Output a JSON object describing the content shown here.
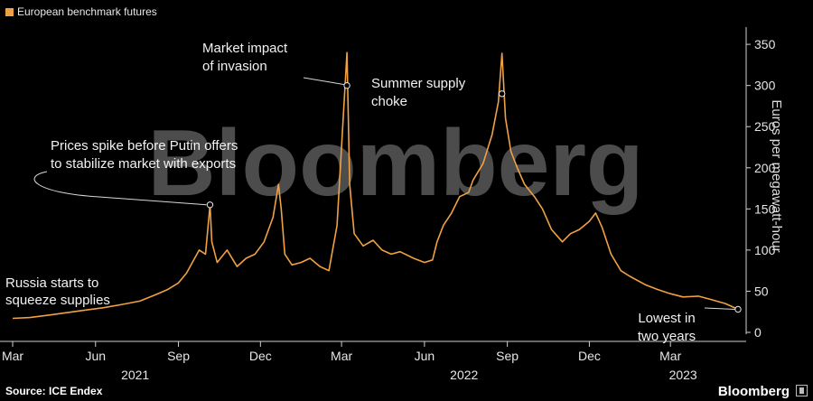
{
  "legend": {
    "label": "European benchmark futures",
    "color": "#f0a144"
  },
  "source": "Source: ICE Endex",
  "brand": "Bloomberg",
  "watermark": "Bloomberg",
  "chart_data": {
    "type": "line",
    "ylabel": "Euros per megawatt-hour",
    "ylim": [
      0,
      360
    ],
    "yticks": [
      0,
      50,
      100,
      150,
      200,
      250,
      300,
      350
    ],
    "xlim": [
      "2021-03-01",
      "2023-05-20"
    ],
    "xticks": [
      {
        "label": "Mar",
        "date": "2021-03-01"
      },
      {
        "label": "Jun",
        "date": "2021-06-01"
      },
      {
        "label": "Sep",
        "date": "2021-09-01"
      },
      {
        "label": "Dec",
        "date": "2021-12-01"
      },
      {
        "label": "Mar",
        "date": "2022-03-01"
      },
      {
        "label": "Jun",
        "date": "2022-06-01"
      },
      {
        "label": "Sep",
        "date": "2022-09-01"
      },
      {
        "label": "Dec",
        "date": "2022-12-01"
      },
      {
        "label": "Mar",
        "date": "2023-03-01"
      }
    ],
    "year_labels": [
      {
        "label": "2021",
        "date": "2021-07-15"
      },
      {
        "label": "2022",
        "date": "2022-07-15"
      },
      {
        "label": "2023",
        "date": "2023-03-15"
      }
    ],
    "grid": false,
    "series": [
      {
        "color": "#f0a144",
        "points": [
          [
            "2021-03-01",
            17
          ],
          [
            "2021-03-20",
            18
          ],
          [
            "2021-04-10",
            21
          ],
          [
            "2021-05-01",
            24
          ],
          [
            "2021-05-20",
            27
          ],
          [
            "2021-06-10",
            30
          ],
          [
            "2021-07-01",
            34
          ],
          [
            "2021-07-20",
            38
          ],
          [
            "2021-08-05",
            45
          ],
          [
            "2021-08-20",
            52
          ],
          [
            "2021-09-01",
            60
          ],
          [
            "2021-09-10",
            72
          ],
          [
            "2021-09-18",
            88
          ],
          [
            "2021-09-24",
            100
          ],
          [
            "2021-10-01",
            95
          ],
          [
            "2021-10-06",
            155
          ],
          [
            "2021-10-08",
            110
          ],
          [
            "2021-10-14",
            85
          ],
          [
            "2021-10-25",
            100
          ],
          [
            "2021-11-05",
            80
          ],
          [
            "2021-11-15",
            90
          ],
          [
            "2021-11-25",
            95
          ],
          [
            "2021-12-05",
            110
          ],
          [
            "2021-12-15",
            140
          ],
          [
            "2021-12-21",
            180
          ],
          [
            "2021-12-24",
            150
          ],
          [
            "2021-12-28",
            95
          ],
          [
            "2022-01-05",
            82
          ],
          [
            "2022-01-15",
            85
          ],
          [
            "2022-01-25",
            90
          ],
          [
            "2022-02-05",
            80
          ],
          [
            "2022-02-15",
            75
          ],
          [
            "2022-02-24",
            130
          ],
          [
            "2022-03-07",
            340
          ],
          [
            "2022-03-10",
            180
          ],
          [
            "2022-03-15",
            120
          ],
          [
            "2022-03-25",
            105
          ],
          [
            "2022-04-05",
            112
          ],
          [
            "2022-04-15",
            100
          ],
          [
            "2022-04-25",
            95
          ],
          [
            "2022-05-05",
            98
          ],
          [
            "2022-05-20",
            90
          ],
          [
            "2022-06-01",
            85
          ],
          [
            "2022-06-10",
            88
          ],
          [
            "2022-06-15",
            110
          ],
          [
            "2022-06-22",
            130
          ],
          [
            "2022-07-01",
            145
          ],
          [
            "2022-07-10",
            165
          ],
          [
            "2022-07-20",
            170
          ],
          [
            "2022-07-25",
            185
          ],
          [
            "2022-08-05",
            205
          ],
          [
            "2022-08-15",
            240
          ],
          [
            "2022-08-22",
            280
          ],
          [
            "2022-08-26",
            339
          ],
          [
            "2022-08-30",
            260
          ],
          [
            "2022-09-05",
            220
          ],
          [
            "2022-09-12",
            200
          ],
          [
            "2022-09-20",
            180
          ],
          [
            "2022-10-01",
            165
          ],
          [
            "2022-10-10",
            150
          ],
          [
            "2022-10-20",
            125
          ],
          [
            "2022-11-01",
            110
          ],
          [
            "2022-11-10",
            120
          ],
          [
            "2022-11-20",
            125
          ],
          [
            "2022-12-01",
            135
          ],
          [
            "2022-12-08",
            145
          ],
          [
            "2022-12-15",
            128
          ],
          [
            "2022-12-25",
            95
          ],
          [
            "2023-01-05",
            75
          ],
          [
            "2023-01-15",
            68
          ],
          [
            "2023-02-01",
            58
          ],
          [
            "2023-02-15",
            52
          ],
          [
            "2023-03-01",
            47
          ],
          [
            "2023-03-15",
            43
          ],
          [
            "2023-04-01",
            44
          ],
          [
            "2023-04-15",
            40
          ],
          [
            "2023-05-01",
            35
          ],
          [
            "2023-05-15",
            28
          ]
        ]
      }
    ],
    "annotations": [
      {
        "id": "russia",
        "lines": [
          "Russia starts to",
          "squeeze supplies"
        ]
      },
      {
        "id": "putin",
        "lines": [
          "Prices spike before Putin offers",
          "to stabilize market with exports"
        ],
        "date": "2021-10-06",
        "value": 155
      },
      {
        "id": "invasion",
        "lines": [
          "Market impact",
          "of invasion"
        ],
        "date": "2022-03-07",
        "value": 300
      },
      {
        "id": "summer",
        "lines": [
          "Summer supply",
          "choke"
        ],
        "date": "2022-08-26",
        "value": 290
      },
      {
        "id": "lowest",
        "lines": [
          "Lowest in",
          "two years"
        ],
        "date": "2023-05-15",
        "value": 28
      }
    ]
  }
}
